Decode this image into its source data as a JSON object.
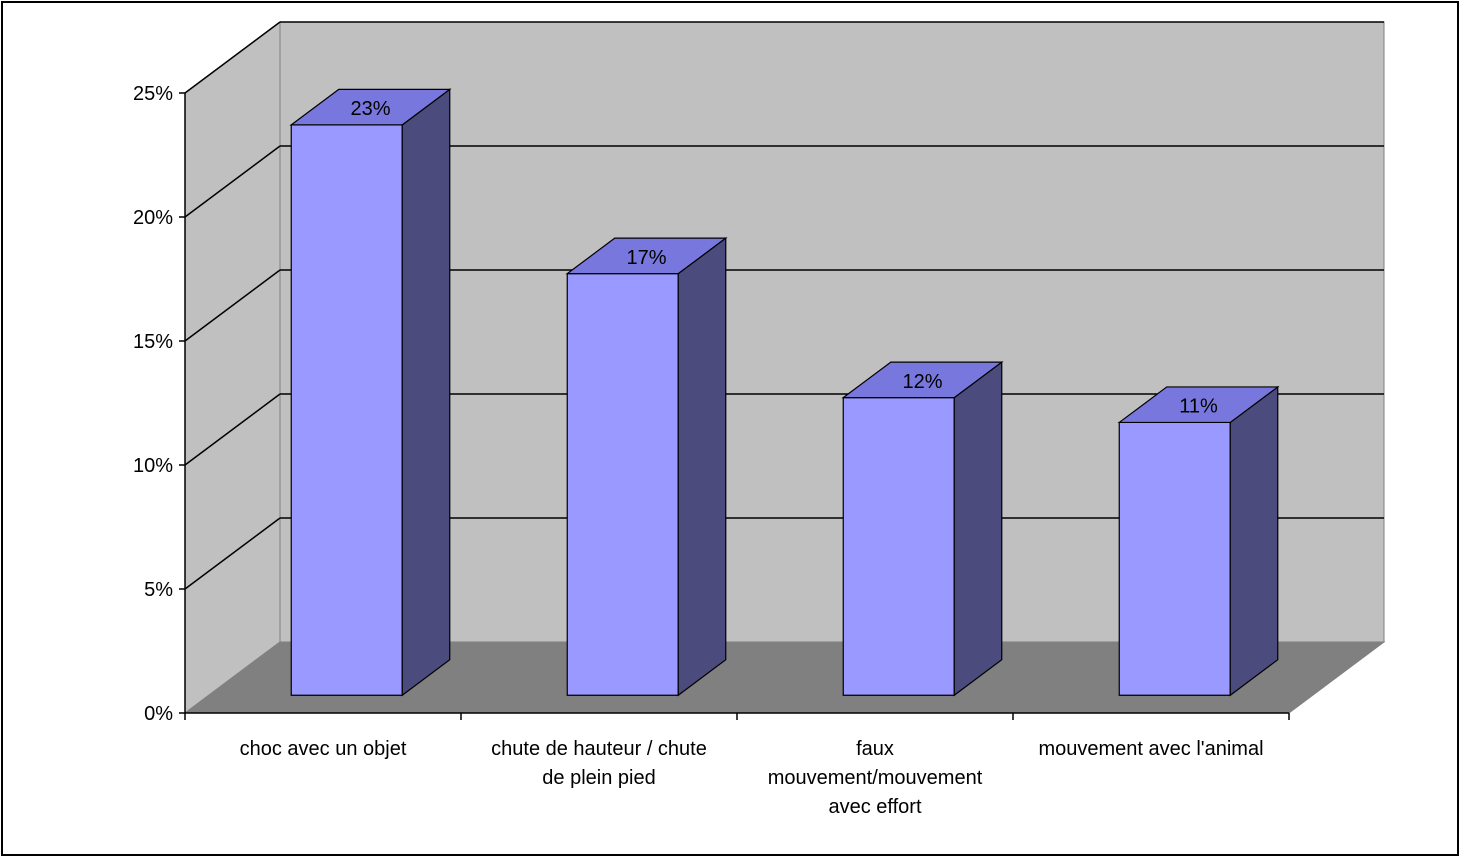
{
  "chart_data": {
    "type": "bar",
    "title": "",
    "xlabel": "",
    "ylabel": "",
    "categories": [
      "choc avec un objet",
      "chute de hauteur / chute de plein pied",
      "faux mouvement/mouvement avec effort",
      "mouvement avec l'animal"
    ],
    "category_lines": [
      [
        "choc avec un objet"
      ],
      [
        "chute de hauteur / chute",
        "de plein pied"
      ],
      [
        "faux",
        "mouvement/mouvement",
        "avec effort"
      ],
      [
        "mouvement avec l'animal"
      ]
    ],
    "values": [
      23,
      17,
      12,
      11
    ],
    "data_labels": [
      "23%",
      "17%",
      "12%",
      "11%"
    ],
    "ylim": [
      0,
      25
    ],
    "y_ticks": [
      0,
      5,
      10,
      15,
      20,
      25
    ],
    "y_tick_labels": [
      "0%",
      "5%",
      "10%",
      "15%",
      "20%",
      "25%"
    ],
    "grid": true,
    "legend": "none",
    "style": "3d-column",
    "colors": {
      "bar_front": "#9999FF",
      "bar_top": "#7777DD",
      "bar_side": "#4B4B7D",
      "back_wall": "#C0C0C0",
      "side_wall": "#C0C0C0",
      "floor": "#808080",
      "gridline": "#000000"
    }
  }
}
